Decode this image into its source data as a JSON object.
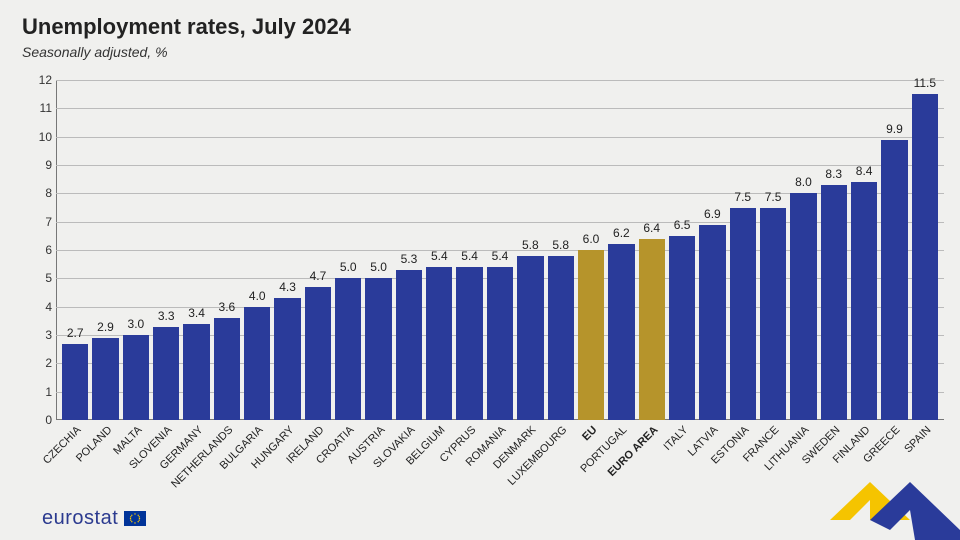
{
  "title": "Unemployment rates, July 2024",
  "title_fontsize": 22,
  "subtitle": "Seasonally adjusted, %",
  "subtitle_fontsize": 14,
  "chart": {
    "type": "bar",
    "ylim": [
      0,
      12
    ],
    "ytick_step": 1,
    "grid_color": "#bbbbbb",
    "axis_color": "#777777",
    "background_color": "#f0f0ee",
    "bar_color_default": "#2a3b9a",
    "bar_color_highlight": "#b6942b",
    "value_fontsize": 12,
    "ytick_fontsize": 12,
    "xlabel_fontsize": 11,
    "categories": [
      {
        "label": "Czechia",
        "value": 2.7,
        "highlight": false
      },
      {
        "label": "Poland",
        "value": 2.9,
        "highlight": false
      },
      {
        "label": "Malta",
        "value": 3.0,
        "highlight": false
      },
      {
        "label": "Slovenia",
        "value": 3.3,
        "highlight": false
      },
      {
        "label": "Germany",
        "value": 3.4,
        "highlight": false
      },
      {
        "label": "Netherlands",
        "value": 3.6,
        "highlight": false
      },
      {
        "label": "Bulgaria",
        "value": 4.0,
        "highlight": false
      },
      {
        "label": "Hungary",
        "value": 4.3,
        "highlight": false
      },
      {
        "label": "Ireland",
        "value": 4.7,
        "highlight": false
      },
      {
        "label": "Croatia",
        "value": 5.0,
        "highlight": false
      },
      {
        "label": "Austria",
        "value": 5.0,
        "highlight": false
      },
      {
        "label": "Slovakia",
        "value": 5.3,
        "highlight": false
      },
      {
        "label": "Belgium",
        "value": 5.4,
        "highlight": false
      },
      {
        "label": "Cyprus",
        "value": 5.4,
        "highlight": false
      },
      {
        "label": "Romania",
        "value": 5.4,
        "highlight": false
      },
      {
        "label": "Denmark",
        "value": 5.8,
        "highlight": false
      },
      {
        "label": "Luxembourg",
        "value": 5.8,
        "highlight": false
      },
      {
        "label": "EU",
        "value": 6.0,
        "highlight": true
      },
      {
        "label": "Portugal",
        "value": 6.2,
        "highlight": false
      },
      {
        "label": "Euro area",
        "value": 6.4,
        "highlight": true
      },
      {
        "label": "Italy",
        "value": 6.5,
        "highlight": false
      },
      {
        "label": "Latvia",
        "value": 6.9,
        "highlight": false
      },
      {
        "label": "Estonia",
        "value": 7.5,
        "highlight": false
      },
      {
        "label": "France",
        "value": 7.5,
        "highlight": false
      },
      {
        "label": "Lithuania",
        "value": 8.0,
        "highlight": false
      },
      {
        "label": "Sweden",
        "value": 8.3,
        "highlight": false
      },
      {
        "label": "Finland",
        "value": 8.4,
        "highlight": false
      },
      {
        "label": "Greece",
        "value": 9.9,
        "highlight": false
      },
      {
        "label": "Spain",
        "value": 11.5,
        "highlight": false
      }
    ]
  },
  "footer": {
    "brand": "eurostat",
    "brand_color": "#2b3a8f",
    "brand_fontsize": 20,
    "flag_bg": "#003399",
    "flag_star": "#ffcc00",
    "corner_yellow": "#f5c400",
    "corner_blue": "#2a3b9a"
  }
}
